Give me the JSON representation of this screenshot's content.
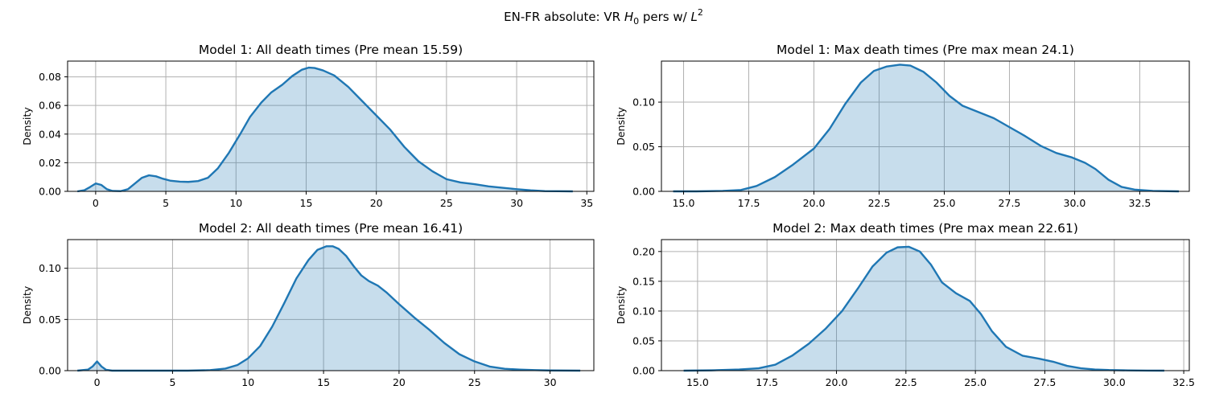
{
  "figure": {
    "title_text": "EN-FR absolute: VR ",
    "title_math_var": "H",
    "title_math_sub": "0",
    "title_mid": " pers w/ ",
    "title_math_var2": "L",
    "title_math_sup": "2"
  },
  "chart_data": [
    {
      "type": "area",
      "title": "Model 1: All death times (Pre mean 15.59)",
      "xlabel": "",
      "ylabel": "Density",
      "xlim": [
        -2.0,
        35.5
      ],
      "ylim": [
        0,
        0.091
      ],
      "xticks": [
        0,
        5,
        10,
        15,
        20,
        25,
        30,
        35
      ],
      "xtick_labels": [
        "0",
        "5",
        "10",
        "15",
        "20",
        "25",
        "30",
        "35"
      ],
      "yticks": [
        0,
        0.02,
        0.04,
        0.06,
        0.08
      ],
      "ytick_labels": [
        "0.00",
        "0.02",
        "0.04",
        "0.06",
        "0.08"
      ],
      "grid": true,
      "series": [
        {
          "x": [
            -1.3,
            -0.8,
            -0.4,
            0,
            0.4,
            0.8,
            1.2,
            1.8,
            2.3,
            2.8,
            3.3,
            3.8,
            4.3,
            4.8,
            5.3,
            6,
            6.6,
            7.3,
            8,
            8.7,
            9.5,
            10.3,
            11,
            11.8,
            12.5,
            13.3,
            14,
            14.7,
            15.2,
            15.6,
            16.2,
            17,
            18,
            19,
            20,
            21,
            22,
            23,
            24,
            25,
            26,
            27,
            28,
            29,
            30,
            31,
            32,
            33,
            34
          ],
          "y": [
            0.0,
            0.0008,
            0.003,
            0.0055,
            0.0045,
            0.0015,
            0.0003,
            0.0002,
            0.0015,
            0.0055,
            0.0095,
            0.0112,
            0.0105,
            0.0088,
            0.0075,
            0.0068,
            0.0066,
            0.0072,
            0.0095,
            0.016,
            0.027,
            0.04,
            0.052,
            0.062,
            0.069,
            0.0745,
            0.0805,
            0.085,
            0.0865,
            0.0862,
            0.0845,
            0.081,
            0.073,
            0.063,
            0.053,
            0.043,
            0.031,
            0.021,
            0.014,
            0.0085,
            0.0062,
            0.005,
            0.0035,
            0.0025,
            0.0015,
            0.0007,
            0.0002,
            0.0001,
            0.0
          ]
        }
      ]
    },
    {
      "type": "area",
      "title": "Model 1: Max death times (Pre max mean 24.1)",
      "xlabel": "",
      "ylabel": "Density",
      "xlim": [
        14.15,
        34.4
      ],
      "ylim": [
        0,
        0.146
      ],
      "xticks": [
        15,
        17.5,
        20,
        22.5,
        25,
        27.5,
        30,
        32.5
      ],
      "xtick_labels": [
        "15.0",
        "17.5",
        "20.0",
        "22.5",
        "25.0",
        "27.5",
        "30.0",
        "32.5"
      ],
      "yticks": [
        0,
        0.05,
        0.1
      ],
      "ytick_labels": [
        "0.00",
        "0.05",
        "0.10"
      ],
      "grid": true,
      "series": [
        {
          "x": [
            14.6,
            15.5,
            16.5,
            17.2,
            17.8,
            18.5,
            19.2,
            20,
            20.6,
            21.2,
            21.8,
            22.3,
            22.8,
            23.3,
            23.7,
            24.2,
            24.7,
            25.2,
            25.7,
            26.3,
            26.9,
            27.5,
            28.1,
            28.7,
            29.3,
            29.9,
            30.4,
            30.8,
            31.3,
            31.8,
            32.3,
            33,
            34
          ],
          "y": [
            0.0,
            0.0,
            0.0005,
            0.0015,
            0.006,
            0.016,
            0.03,
            0.048,
            0.07,
            0.098,
            0.122,
            0.135,
            0.14,
            0.142,
            0.141,
            0.134,
            0.122,
            0.107,
            0.096,
            0.089,
            0.082,
            0.072,
            0.062,
            0.051,
            0.043,
            0.038,
            0.032,
            0.025,
            0.013,
            0.005,
            0.002,
            0.0005,
            0.0
          ]
        }
      ]
    },
    {
      "type": "area",
      "title": "Model 2: All death times (Pre mean 16.41)",
      "xlabel": "",
      "ylabel": "Density",
      "xlim": [
        -1.95,
        32.9
      ],
      "ylim": [
        0,
        0.128
      ],
      "xticks": [
        0,
        5,
        10,
        15,
        20,
        25,
        30
      ],
      "xtick_labels": [
        "0",
        "5",
        "10",
        "15",
        "20",
        "25",
        "30"
      ],
      "yticks": [
        0,
        0.05,
        0.1
      ],
      "ytick_labels": [
        "0.00",
        "0.05",
        "0.10"
      ],
      "grid": true,
      "series": [
        {
          "x": [
            -1.3,
            -0.6,
            -0.3,
            0,
            0.3,
            0.6,
            1,
            2,
            4,
            6,
            7.5,
            8.5,
            9.3,
            10,
            10.8,
            11.6,
            12.4,
            13.2,
            14,
            14.6,
            15.2,
            15.6,
            16,
            16.5,
            17,
            17.5,
            18,
            18.6,
            19.2,
            20,
            21,
            22,
            23,
            24,
            25,
            26,
            27,
            28,
            29,
            30,
            31,
            32
          ],
          "y": [
            0.0,
            0.001,
            0.004,
            0.009,
            0.004,
            0.0008,
            0.0,
            0.0,
            0.0,
            0.0,
            0.0005,
            0.002,
            0.0055,
            0.012,
            0.024,
            0.043,
            0.066,
            0.09,
            0.108,
            0.118,
            0.1215,
            0.1215,
            0.119,
            0.112,
            0.102,
            0.093,
            0.0875,
            0.083,
            0.076,
            0.065,
            0.052,
            0.04,
            0.027,
            0.016,
            0.009,
            0.004,
            0.0018,
            0.001,
            0.0005,
            0.0002,
            0.0001,
            0.0
          ]
        }
      ]
    },
    {
      "type": "area",
      "title": "Model 2: Max death times (Pre max mean 22.61)",
      "xlabel": "",
      "ylabel": "Density",
      "xlim": [
        13.7,
        32.7
      ],
      "ylim": [
        0,
        0.22
      ],
      "xticks": [
        15,
        17.5,
        20,
        22.5,
        25,
        27.5,
        30,
        32.5
      ],
      "xtick_labels": [
        "15.0",
        "17.5",
        "20.0",
        "22.5",
        "25.0",
        "27.5",
        "30.0",
        "32.5"
      ],
      "yticks": [
        0,
        0.05,
        0.1,
        0.15,
        0.2
      ],
      "ytick_labels": [
        "0.00",
        "0.05",
        "0.10",
        "0.15",
        "0.20"
      ],
      "grid": true,
      "series": [
        {
          "x": [
            14.5,
            15.5,
            16.5,
            17.2,
            17.8,
            18.4,
            19,
            19.6,
            20.2,
            20.8,
            21.3,
            21.8,
            22.2,
            22.6,
            23,
            23.4,
            23.8,
            24.3,
            24.8,
            25.2,
            25.6,
            26.1,
            26.7,
            27.3,
            27.8,
            28.3,
            28.8,
            29.3,
            29.8,
            30.5,
            31.2,
            31.8
          ],
          "y": [
            0.0,
            0.0005,
            0.002,
            0.004,
            0.01,
            0.025,
            0.045,
            0.07,
            0.1,
            0.14,
            0.175,
            0.198,
            0.207,
            0.208,
            0.2,
            0.178,
            0.148,
            0.13,
            0.117,
            0.095,
            0.066,
            0.04,
            0.025,
            0.02,
            0.015,
            0.008,
            0.004,
            0.002,
            0.001,
            0.0004,
            0.0001,
            0.0
          ]
        }
      ]
    }
  ]
}
